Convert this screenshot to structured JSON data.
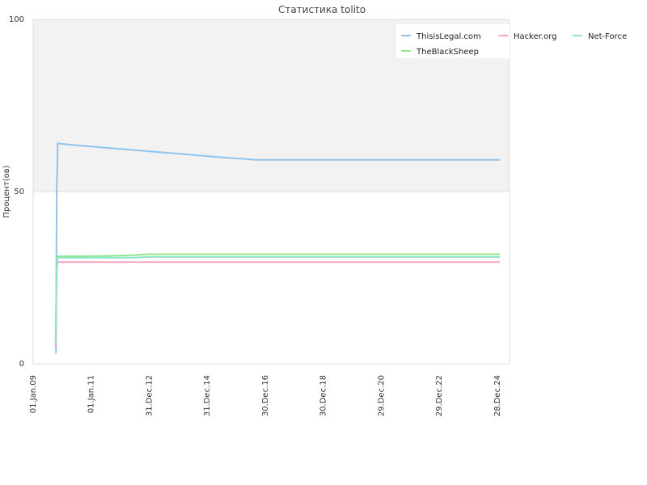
{
  "chart_data": {
    "type": "line",
    "title": "Статистика tolito",
    "xlabel": "",
    "ylabel": "Процент(ов)",
    "ylim": [
      0,
      100
    ],
    "yticks": [
      "0",
      "50",
      "100"
    ],
    "xticks": [
      "01.Jan.09",
      "01.Jan.11",
      "31.Dec.12",
      "31.Dec.14",
      "30.Dec.16",
      "30.Dec.18",
      "29.Dec.20",
      "29.Dec.22",
      "28.Dec.24"
    ],
    "xticks_date": [
      "2009-01-01",
      "2011-01-01",
      "2012-12-31",
      "2014-12-31",
      "2016-12-30",
      "2018-12-30",
      "2020-12-29",
      "2022-12-29",
      "2024-12-28"
    ],
    "x_range": [
      "2009-01-01",
      "2025-06-01"
    ],
    "bands": [
      {
        "from": 50,
        "to": 100,
        "color": "#f2f2f2"
      },
      {
        "from": 0,
        "to": 50,
        "color": "#ffffff"
      }
    ],
    "legend_position": "top-right",
    "series": [
      {
        "name": "ThisisLegal.com",
        "color": "#8ec4f0",
        "points": [
          [
            "2009-10-15",
            3
          ],
          [
            "2009-10-20",
            30
          ],
          [
            "2009-10-25",
            52
          ],
          [
            "2009-11-01",
            57
          ],
          [
            "2009-11-05",
            64
          ],
          [
            "2010-06-01",
            63.5
          ],
          [
            "2011-06-01",
            62.8
          ],
          [
            "2012-06-01",
            62.1
          ],
          [
            "2013-06-01",
            61.4
          ],
          [
            "2014-06-01",
            60.7
          ],
          [
            "2015-06-01",
            60.0
          ],
          [
            "2016-06-01",
            59.4
          ],
          [
            "2016-09-01",
            59.2
          ],
          [
            "2025-02-01",
            59.2
          ]
        ]
      },
      {
        "name": "Hacker.org",
        "color": "#f4a6c0",
        "points": [
          [
            "2009-10-10",
            5
          ],
          [
            "2009-10-15",
            13
          ],
          [
            "2009-10-22",
            22
          ],
          [
            "2009-10-28",
            28
          ],
          [
            "2009-11-05",
            29.5
          ],
          [
            "2025-02-01",
            29.5
          ]
        ]
      },
      {
        "name": "Net-Force",
        "color": "#8de3c8",
        "points": [
          [
            "2009-10-10",
            6
          ],
          [
            "2009-10-18",
            20
          ],
          [
            "2009-10-25",
            29
          ],
          [
            "2009-11-05",
            30.8
          ],
          [
            "2012-06-01",
            30.8
          ],
          [
            "2013-01-01",
            31.0
          ],
          [
            "2025-02-01",
            31.0
          ]
        ]
      },
      {
        "name": "TheBlackSheep",
        "color": "#90e890",
        "points": [
          [
            "2009-10-20",
            30.5
          ],
          [
            "2009-11-05",
            31.2
          ],
          [
            "2011-06-01",
            31.3
          ],
          [
            "2012-06-01",
            31.5
          ],
          [
            "2013-01-01",
            31.8
          ],
          [
            "2025-02-01",
            31.8
          ]
        ]
      }
    ]
  }
}
